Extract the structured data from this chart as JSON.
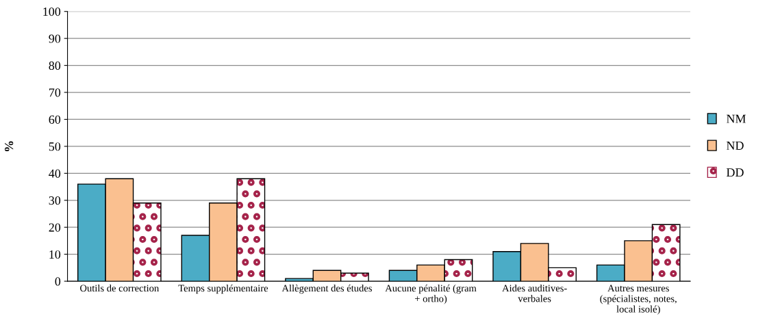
{
  "chart_data": {
    "type": "bar",
    "ylabel": "%",
    "categories": [
      "Outils de correction",
      "Temps supplémentaire",
      "Allègement des études",
      "Aucune pénalité (gram\n+ ortho)",
      "Aides auditives-\nverbales",
      "Autres mesures\n(spécialistes, notes,\nlocal isolé)"
    ],
    "series": [
      {
        "name": "NM",
        "color": "#4bacc6",
        "values": [
          36,
          17,
          1,
          4,
          11,
          6
        ]
      },
      {
        "name": "ND",
        "color": "#fac090",
        "values": [
          38,
          29,
          4,
          6,
          14,
          15
        ]
      },
      {
        "name": "DD",
        "color": "#a5234a",
        "values": [
          29,
          38,
          3,
          8,
          5,
          21
        ]
      }
    ],
    "ylim": [
      0,
      100
    ],
    "yticks": [
      0,
      10,
      20,
      30,
      40,
      50,
      60,
      70,
      80,
      90,
      100
    ],
    "grid": "y",
    "legend": "right"
  }
}
